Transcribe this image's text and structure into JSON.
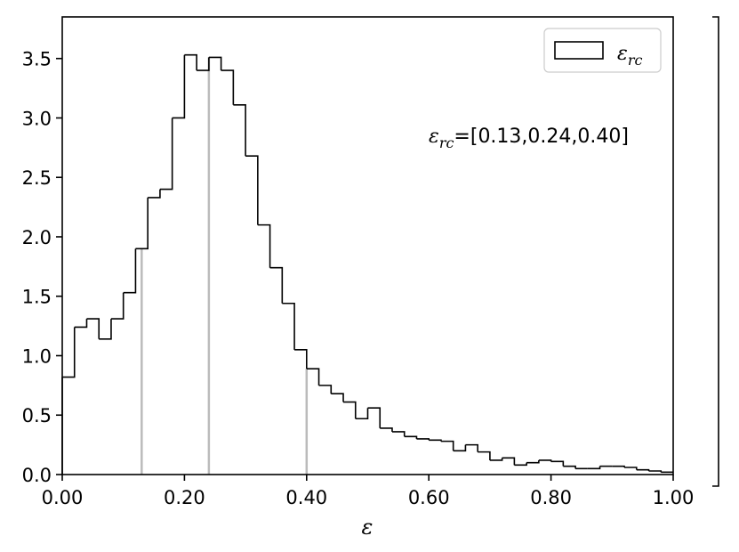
{
  "chart_data": {
    "type": "histogram",
    "xlabel": "ε",
    "ylabel": "",
    "xlim": [
      0.0,
      1.0
    ],
    "ylim": [
      0.0,
      3.85
    ],
    "xticks": [
      "0.00",
      "0.20",
      "0.40",
      "0.60",
      "0.80",
      "1.00"
    ],
    "yticks": [
      "0.0",
      "0.5",
      "1.0",
      "1.5",
      "2.0",
      "2.5",
      "3.0",
      "3.5"
    ],
    "grid": false,
    "legend_position": "top-right",
    "series": [
      {
        "name": "ε_rc",
        "legend": {
          "base": "ε",
          "sub": "rc"
        },
        "style": "step",
        "color": "#000000",
        "bin_edges": [
          0.0,
          0.02,
          0.04,
          0.06,
          0.08,
          0.1,
          0.12,
          0.14,
          0.16,
          0.18,
          0.2,
          0.22,
          0.24,
          0.26,
          0.28,
          0.3,
          0.32,
          0.34,
          0.36,
          0.38,
          0.4,
          0.42,
          0.44,
          0.46,
          0.48,
          0.5,
          0.52,
          0.54,
          0.56,
          0.58,
          0.6,
          0.62,
          0.64,
          0.66,
          0.68,
          0.7,
          0.72,
          0.74,
          0.76,
          0.78,
          0.8,
          0.82,
          0.84,
          0.86,
          0.88,
          0.9,
          0.92,
          0.94,
          0.96,
          0.98,
          1.0
        ],
        "values": [
          0.82,
          1.24,
          1.31,
          1.14,
          1.31,
          1.53,
          1.9,
          2.33,
          2.4,
          3.0,
          3.53,
          3.4,
          3.51,
          3.4,
          3.11,
          2.68,
          2.1,
          1.74,
          1.44,
          1.05,
          0.89,
          0.75,
          0.68,
          0.61,
          0.47,
          0.56,
          0.39,
          0.36,
          0.32,
          0.3,
          0.29,
          0.28,
          0.2,
          0.25,
          0.19,
          0.12,
          0.14,
          0.08,
          0.1,
          0.12,
          0.11,
          0.07,
          0.05,
          0.05,
          0.07,
          0.07,
          0.06,
          0.04,
          0.03,
          0.02
        ]
      }
    ],
    "quantile_lines": {
      "color": "#bbbbbb",
      "x": [
        0.13,
        0.24,
        0.4
      ]
    },
    "annotation": {
      "base": "ε",
      "sub": "rc",
      "text": "=[0.13,0.24,0.40]"
    }
  }
}
